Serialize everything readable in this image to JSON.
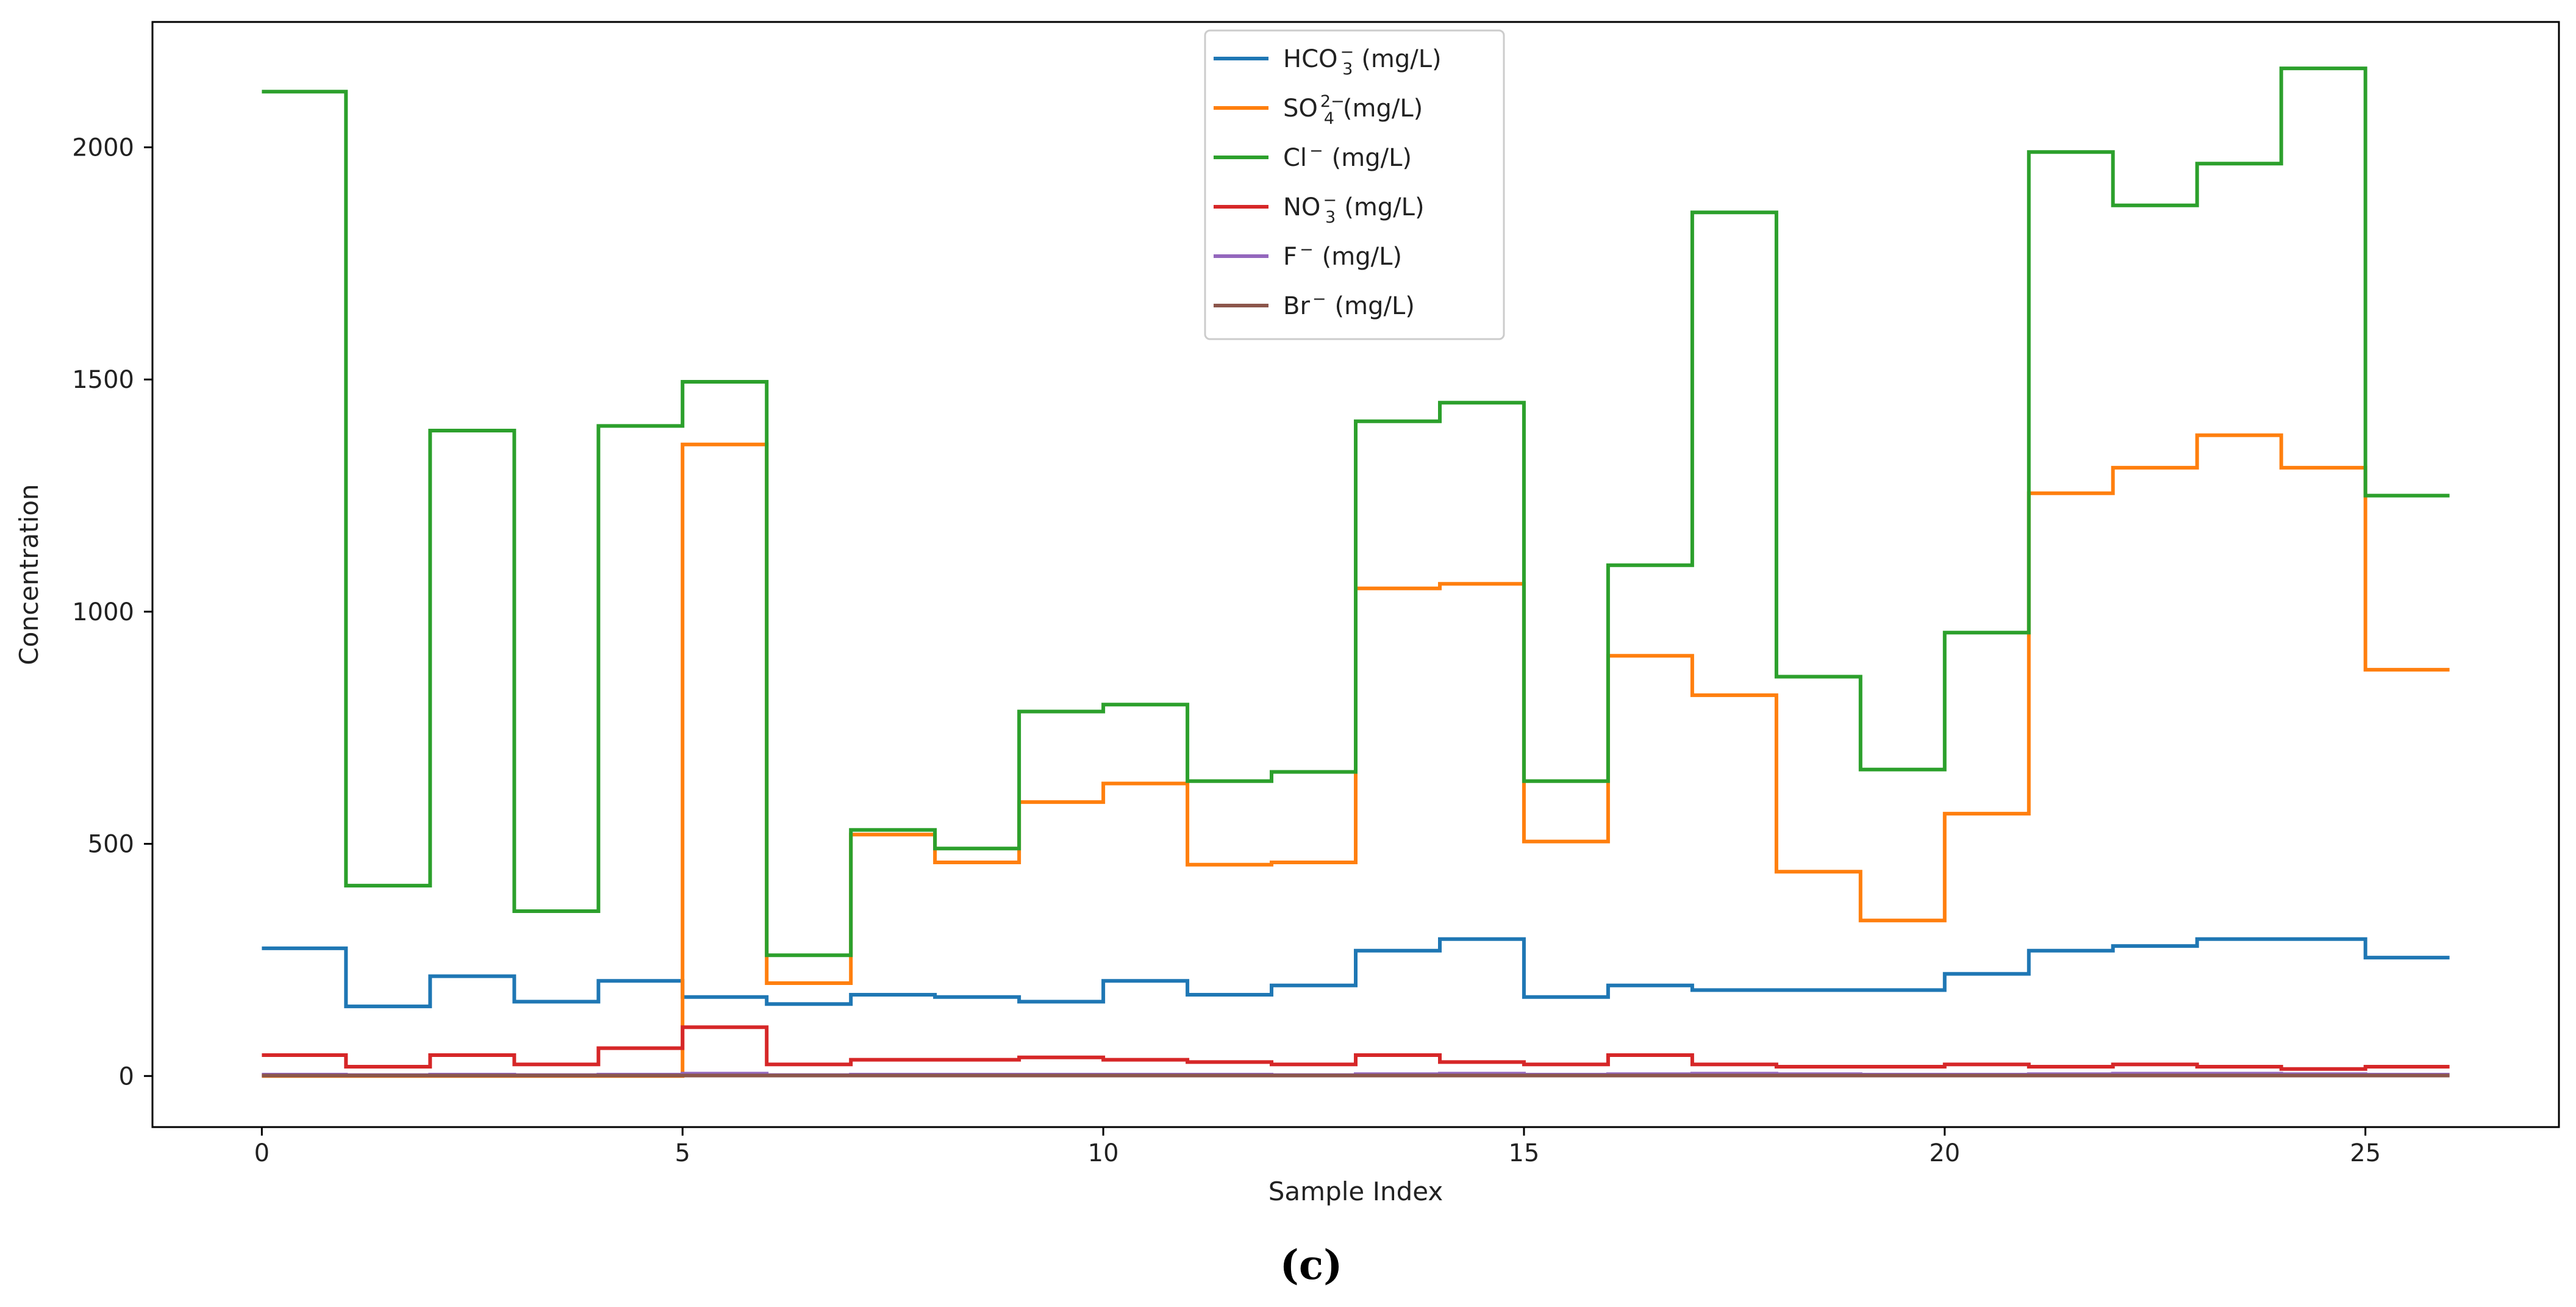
{
  "chart_data": {
    "type": "line",
    "step": "post",
    "title": "",
    "xlabel": "Sample Index",
    "ylabel": "Concentration",
    "caption": "(c)",
    "xlim": [
      -1.3,
      27.3
    ],
    "ylim": [
      -110,
      2270
    ],
    "xticks": [
      0,
      5,
      10,
      15,
      20,
      25
    ],
    "yticks": [
      0,
      500,
      1000,
      1500,
      2000
    ],
    "grid": false,
    "legend_position": "top-center",
    "x": [
      0,
      1,
      2,
      3,
      4,
      5,
      6,
      7,
      8,
      9,
      10,
      11,
      12,
      13,
      14,
      15,
      16,
      17,
      18,
      19,
      20,
      21,
      22,
      23,
      24,
      25,
      26
    ],
    "series": [
      {
        "name": "HCO3 (mg/L)",
        "legend_base": "HCO",
        "legend_sub": "3",
        "legend_sup": "−",
        "legend_unit": "(mg/L)",
        "color": "#1f77b4",
        "values": [
          275,
          150,
          215,
          160,
          205,
          170,
          155,
          175,
          170,
          160,
          205,
          175,
          195,
          270,
          295,
          170,
          195,
          185,
          185,
          185,
          220,
          270,
          280,
          295,
          295,
          255,
          255
        ]
      },
      {
        "name": "SO4 2- (mg/L)",
        "legend_base": "SO",
        "legend_sub": "4",
        "legend_sup": "2−",
        "legend_unit": "(mg/L)",
        "color": "#ff7f0e",
        "values": [
          0,
          0,
          0,
          0,
          0,
          1360,
          200,
          520,
          460,
          590,
          630,
          455,
          460,
          1050,
          1060,
          505,
          905,
          820,
          440,
          335,
          565,
          1255,
          1310,
          1380,
          1310,
          875,
          875
        ]
      },
      {
        "name": "Cl- (mg/L)",
        "legend_base": "Cl",
        "legend_sub": "",
        "legend_sup": "−",
        "legend_unit": "(mg/L)",
        "color": "#2ca02c",
        "values": [
          2120,
          410,
          1390,
          355,
          1400,
          1495,
          260,
          530,
          490,
          785,
          800,
          635,
          655,
          1410,
          1450,
          635,
          1100,
          1860,
          860,
          660,
          955,
          1990,
          1875,
          1965,
          2170,
          1250,
          1250
        ]
      },
      {
        "name": "NO3 (mg/L)",
        "legend_base": "NO",
        "legend_sub": "3",
        "legend_sup": "−",
        "legend_unit": "(mg/L)",
        "color": "#d62728",
        "values": [
          45,
          20,
          45,
          25,
          60,
          105,
          25,
          35,
          35,
          40,
          35,
          30,
          25,
          45,
          30,
          25,
          45,
          25,
          20,
          20,
          25,
          20,
          25,
          20,
          15,
          20,
          20
        ]
      },
      {
        "name": "F- (mg/L)",
        "legend_base": "F",
        "legend_sub": "",
        "legend_sup": "−",
        "legend_unit": "(mg/L)",
        "color": "#9467bd",
        "values": [
          3,
          2,
          3,
          2,
          3,
          5,
          2,
          3,
          3,
          3,
          3,
          3,
          2,
          4,
          5,
          3,
          4,
          5,
          4,
          3,
          3,
          4,
          5,
          5,
          4,
          3,
          3
        ]
      },
      {
        "name": "Br- (mg/L)",
        "legend_base": "Br",
        "legend_sub": "",
        "legend_sup": "−",
        "legend_unit": "(mg/L)",
        "color": "#8c564b",
        "values": [
          1,
          1,
          1,
          1,
          1,
          1,
          1,
          1,
          1,
          1,
          1,
          1,
          1,
          1,
          1,
          1,
          1,
          1,
          1,
          1,
          1,
          1,
          1,
          1,
          1,
          1,
          1
        ]
      }
    ]
  }
}
